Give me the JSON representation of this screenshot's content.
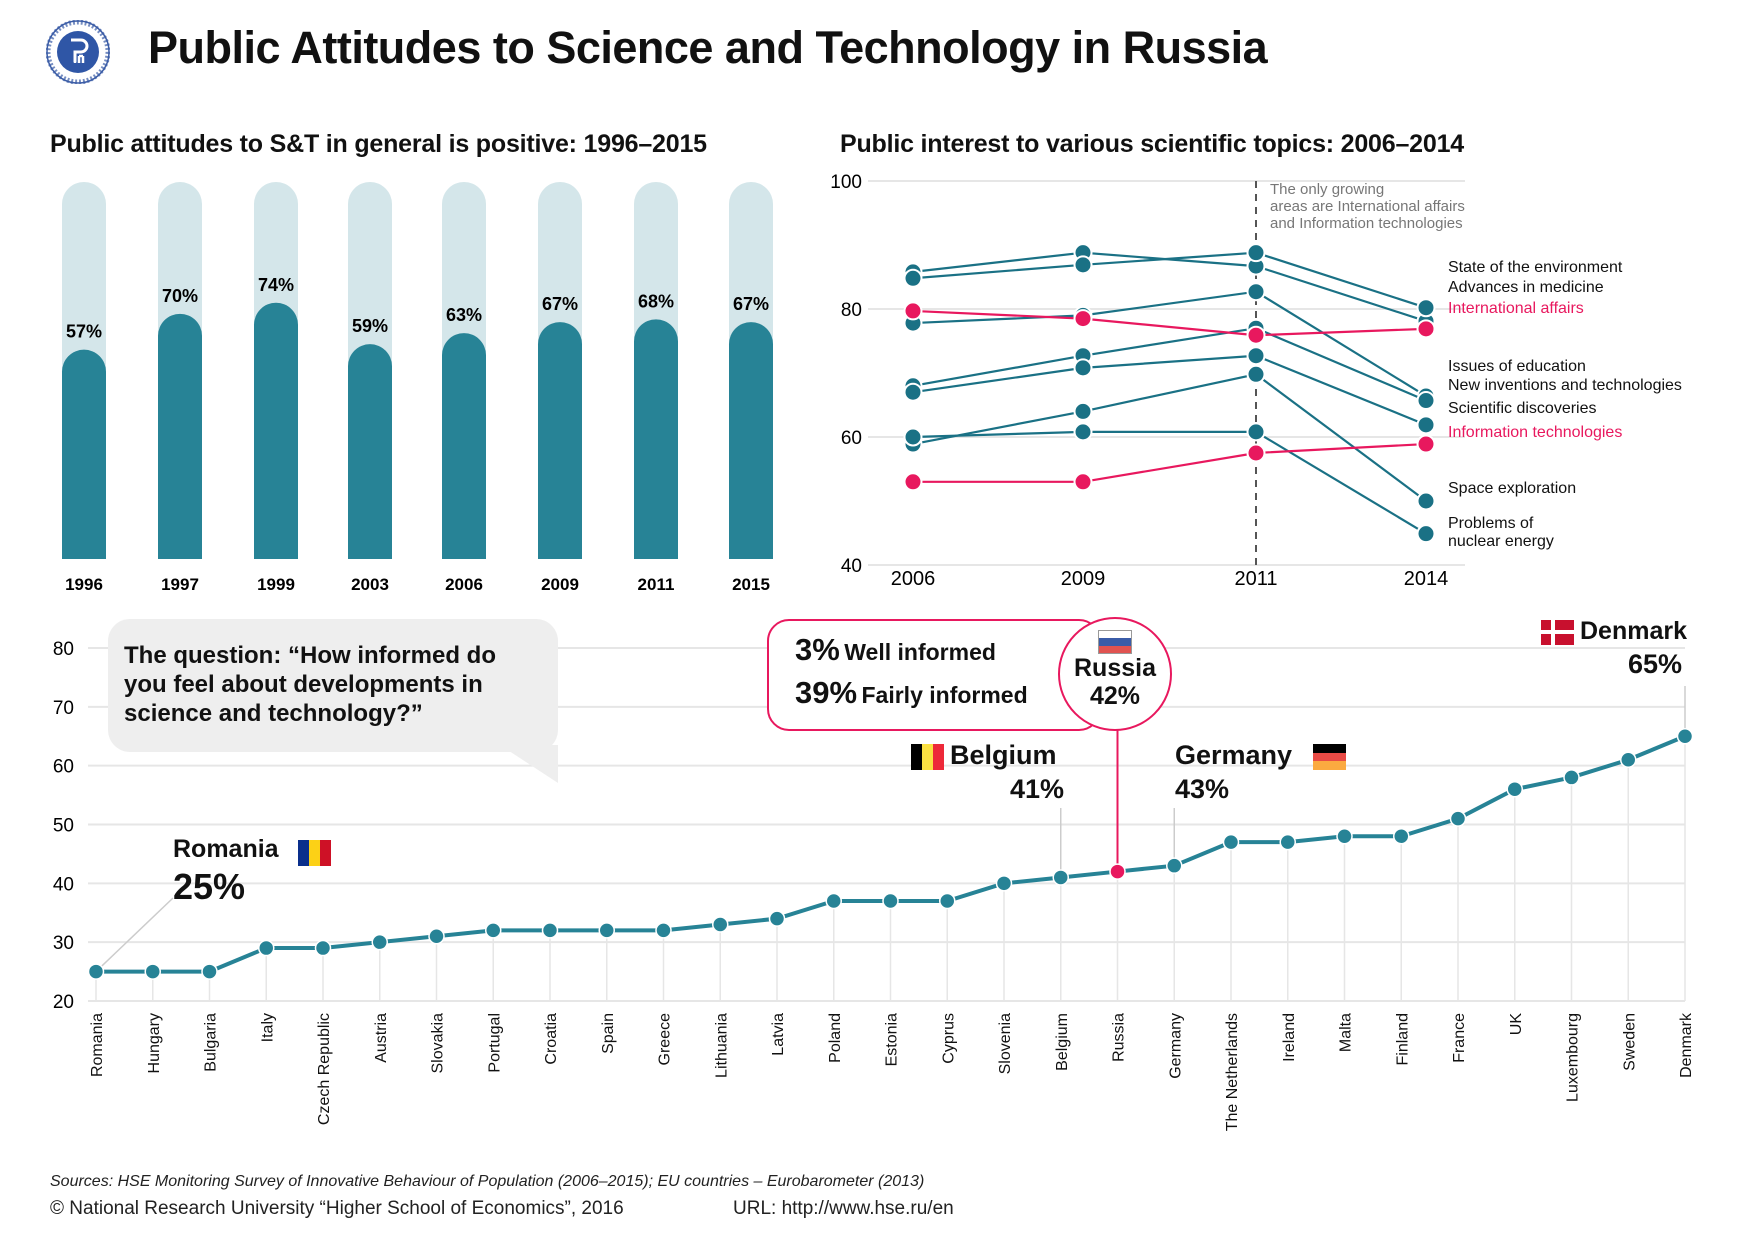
{
  "header": {
    "title": "Public Attitudes to Science and Technology in Russia",
    "logo": "hse-logo"
  },
  "colors": {
    "teal": "#278396",
    "teal_dark": "#1a7185",
    "teal_light": "#d4e6ea",
    "pink": "#e8185e",
    "grid": "#e6e6e6"
  },
  "chart_data": [
    {
      "type": "bar",
      "title": "Public attitudes to S&T in general is positive: 1996–2015",
      "categories": [
        "1996",
        "1997",
        "1999",
        "2003",
        "2006",
        "2009",
        "2011",
        "2015"
      ],
      "values": [
        57,
        70,
        74,
        59,
        63,
        67,
        68,
        67
      ],
      "value_labels": [
        "57%",
        "70%",
        "74%",
        "59%",
        "63%",
        "67%",
        "68%",
        "67%"
      ],
      "xlabel": "",
      "ylabel": "",
      "ylim": [
        0,
        100
      ]
    },
    {
      "type": "line",
      "title": "Public interest to various scientific topics: 2006–2014",
      "x": [
        "2006",
        "2009",
        "2011",
        "2014"
      ],
      "ylim": [
        40,
        100
      ],
      "yticks": [
        40,
        60,
        80,
        100
      ],
      "grid": true,
      "annotation": {
        "x": "2011",
        "lines": [
          "The only growing",
          "areas are International affairs",
          "and Information technologies"
        ]
      },
      "series": [
        {
          "name": "State of the environment",
          "highlight": false,
          "values": [
            85.8,
            88.8,
            86.7,
            78.1
          ]
        },
        {
          "name": "Advances in medicine",
          "highlight": false,
          "values": [
            84.8,
            86.9,
            88.8,
            80.2
          ]
        },
        {
          "name": "International affairs",
          "highlight": true,
          "values": [
            79.7,
            78.5,
            75.9,
            76.9
          ]
        },
        {
          "name": "Issues of education",
          "highlight": false,
          "values": [
            77.8,
            79.0,
            82.7,
            66.4
          ]
        },
        {
          "name": "New inventions and technologies",
          "highlight": false,
          "values": [
            68.0,
            72.7,
            77.0,
            65.7
          ]
        },
        {
          "name": "Scientific discoveries",
          "highlight": false,
          "values": [
            67.0,
            70.8,
            72.7,
            61.9
          ]
        },
        {
          "name": "Information technologies",
          "highlight": true,
          "values": [
            53.0,
            53.0,
            57.5,
            58.9
          ]
        },
        {
          "name": "Space exploration",
          "highlight": false,
          "values": [
            58.9,
            64.0,
            69.8,
            50.0
          ]
        },
        {
          "name": "Problems of nuclear energy",
          "highlight": false,
          "values": [
            60.0,
            60.8,
            60.8,
            44.9
          ]
        }
      ],
      "legend_labels": [
        {
          "text": "State of the environment",
          "highlight": false
        },
        {
          "text": "Advances in medicine",
          "highlight": false
        },
        {
          "text": "International affairs",
          "highlight": true
        },
        {
          "text": "Issues of education",
          "highlight": false
        },
        {
          "text": "New inventions and technologies",
          "highlight": false
        },
        {
          "text": "Scientific discoveries",
          "highlight": false
        },
        {
          "text": "Information technologies",
          "highlight": true
        },
        {
          "text": "Space exploration",
          "highlight": false
        },
        {
          "text": "Problems of",
          "highlight": false
        },
        {
          "text": "nuclear energy",
          "highlight": false
        }
      ],
      "legend": "right"
    },
    {
      "type": "line",
      "title": "",
      "categories": [
        "Romania",
        "Hungary",
        "Bulgaria",
        "Italy",
        "Czech Republic",
        "Austria",
        "Slovakia",
        "Portugal",
        "Croatia",
        "Spain",
        "Greece",
        "Lithuania",
        "Latvia",
        "Poland",
        "Estonia",
        "Cyprus",
        "Slovenia",
        "Belgium",
        "Russia",
        "Germany",
        "The Netherlands",
        "Ireland",
        "Malta",
        "Finland",
        "France",
        "UK",
        "Luxembourg",
        "Sweden",
        "Denmark"
      ],
      "values": [
        25,
        25,
        25,
        29,
        29,
        30,
        31,
        32,
        32,
        32,
        32,
        33,
        34,
        37,
        37,
        37,
        40,
        41,
        42,
        43,
        47,
        47,
        48,
        48,
        51,
        56,
        58,
        61,
        65
      ],
      "highlight_category": "Russia",
      "ylim": [
        20,
        80
      ],
      "yticks": [
        20,
        30,
        40,
        50,
        60,
        70,
        80
      ],
      "grid": true,
      "question": "The question: “How informed do you feel about developments in science and technology?”",
      "question_lines": [
        "The question: “How informed do",
        "you feel about developments in",
        "science and technology?”"
      ],
      "callouts": {
        "romania": {
          "country": "Romania",
          "value": "25%"
        },
        "belgium": {
          "country": "Belgium",
          "value": "41%"
        },
        "germany": {
          "country": "Germany",
          "value": "43%"
        },
        "denmark": {
          "country": "Denmark",
          "value": "65%"
        },
        "russia": {
          "country": "Russia",
          "value": "42%",
          "well_pct": "3%",
          "well_label": "Well informed",
          "fairly_pct": "39%",
          "fairly_label": "Fairly informed"
        }
      }
    }
  ],
  "footer": {
    "sources": "Sources: HSE Monitoring Survey of Innovative Behaviour of Population (2006–2015); EU countries – Eurobarometer (2013)",
    "copyright": "© National Research University  “Higher School of Economics”, 2016",
    "url": "URL: http://www.hse.ru/en"
  }
}
